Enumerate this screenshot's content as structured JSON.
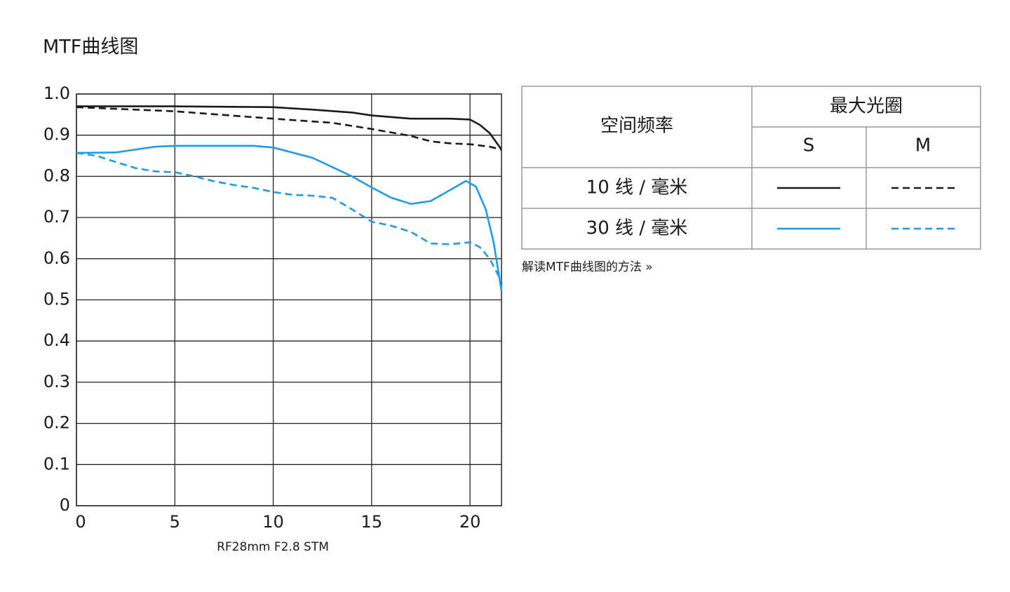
{
  "title": "MTF曲线图",
  "chart_data": {
    "type": "line",
    "caption": "RF28mm F2.8 STM",
    "xlim": [
      0,
      21.6
    ],
    "xticks": [
      0,
      5,
      10,
      15,
      20
    ],
    "ylim": [
      0,
      1
    ],
    "yticks": [
      0,
      0.1,
      0.2,
      0.3,
      0.4,
      0.5,
      0.6,
      0.7,
      0.8,
      0.9,
      {
        "value": 1,
        "label": "1.0"
      }
    ],
    "grid": true,
    "series": [
      {
        "color": "#1a1a1a",
        "dashed": false,
        "x": [
          0,
          5,
          10,
          12,
          14,
          15,
          17,
          19,
          20,
          20.5,
          21,
          21.6
        ],
        "values": [
          0.97,
          0.97,
          0.968,
          0.962,
          0.955,
          0.948,
          0.94,
          0.94,
          0.938,
          0.925,
          0.905,
          0.865
        ]
      },
      {
        "color": "#1a1a1a",
        "dashed": true,
        "x": [
          0,
          5,
          10,
          13,
          15,
          17,
          18,
          19,
          20,
          21,
          21.6
        ],
        "values": [
          0.968,
          0.958,
          0.94,
          0.93,
          0.915,
          0.898,
          0.885,
          0.88,
          0.878,
          0.872,
          0.865
        ]
      },
      {
        "color": "#1e9be8",
        "dashed": false,
        "x": [
          0,
          2,
          4,
          5,
          7,
          9,
          10,
          12,
          14,
          15,
          16,
          17,
          18,
          19,
          19.8,
          20.3,
          20.8,
          21.2,
          21.6
        ],
        "values": [
          0.857,
          0.858,
          0.872,
          0.874,
          0.874,
          0.874,
          0.87,
          0.845,
          0.8,
          0.773,
          0.748,
          0.733,
          0.74,
          0.767,
          0.789,
          0.775,
          0.72,
          0.64,
          0.522
        ]
      },
      {
        "color": "#1e9be8",
        "dashed": true,
        "x": [
          0,
          1,
          2,
          3,
          4,
          5,
          6,
          7,
          8,
          9,
          10,
          11,
          12,
          13,
          14,
          15,
          16,
          17,
          18,
          19,
          20,
          20.5,
          21,
          21.6
        ],
        "values": [
          0.857,
          0.85,
          0.835,
          0.82,
          0.812,
          0.81,
          0.8,
          0.788,
          0.779,
          0.772,
          0.762,
          0.755,
          0.753,
          0.748,
          0.72,
          0.69,
          0.68,
          0.665,
          0.637,
          0.635,
          0.64,
          0.628,
          0.6,
          0.545
        ]
      }
    ]
  },
  "table": {
    "header": "空间频率",
    "group": "最大光圈",
    "columns": [
      "S",
      "M"
    ],
    "rows": [
      "10 线 / 毫米",
      "30 线 / 毫米"
    ]
  },
  "link": "解读MTF曲线图的方法 »"
}
